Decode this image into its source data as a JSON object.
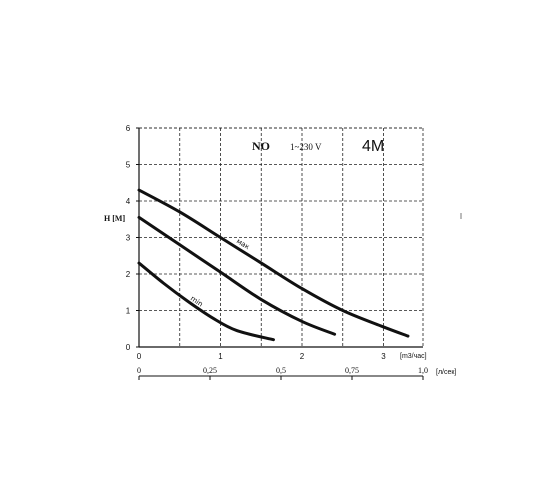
{
  "chart_data": {
    "type": "line",
    "title": {
      "series_code": "NO",
      "voltage": "1~230 V",
      "model": "4M"
    },
    "ylabel": "H [M]",
    "ylim": [
      0,
      6
    ],
    "yticks": [
      "0",
      "1",
      "2",
      "3",
      "4",
      "5",
      "6"
    ],
    "xlabel": "[m3/час]",
    "xlim": [
      0,
      3.5
    ],
    "xticks": [
      "0",
      "1",
      "2",
      "3"
    ],
    "x2label": "[л/сек]",
    "x2lim": [
      0,
      1.0
    ],
    "x2ticks": [
      "0",
      "0,25",
      "0,5",
      "0,75",
      "1,0"
    ],
    "grid": true,
    "series": [
      {
        "name": "мак",
        "x": [
          0,
          0.5,
          1.0,
          1.5,
          2.0,
          2.5,
          3.0,
          3.3
        ],
        "y": [
          4.3,
          3.7,
          3.0,
          2.3,
          1.6,
          1.0,
          0.55,
          0.3
        ]
      },
      {
        "x": [
          0,
          0.5,
          1.0,
          1.5,
          2.0,
          2.4
        ],
        "y": [
          3.55,
          2.8,
          2.05,
          1.3,
          0.7,
          0.35
        ]
      },
      {
        "name": "min",
        "x": [
          0,
          0.3,
          0.6,
          0.9,
          1.2,
          1.65
        ],
        "y": [
          2.3,
          1.75,
          1.25,
          0.8,
          0.45,
          0.2
        ]
      }
    ]
  }
}
